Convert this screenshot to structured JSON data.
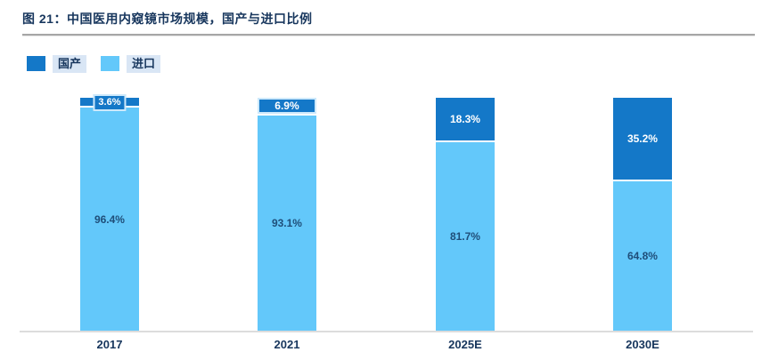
{
  "title": "图 21：中国医用内窥镜市场规模，国产与进口比例",
  "legend": {
    "domestic_label": "国产",
    "import_label": "进口"
  },
  "colors": {
    "domestic": "#1478c8",
    "import": "#63c8fa",
    "title_text": "#17365d",
    "import_label_text": "#1f4e79",
    "axis_line": "#dcdcdc",
    "divider": "#a6a6a6",
    "legend_highlight": "#d9e6f5",
    "label_box_border": "#cde9fb"
  },
  "chart_data": {
    "type": "bar",
    "subtype": "stacked-100-percent",
    "title": "图 21：中国医用内窥镜市场规模，国产与进口比例",
    "categories": [
      "2017",
      "2021",
      "2025E",
      "2030E"
    ],
    "series": [
      {
        "name": "国产",
        "values": [
          3.6,
          6.9,
          18.3,
          35.2
        ],
        "color": "#1478c8"
      },
      {
        "name": "进口",
        "values": [
          96.4,
          93.1,
          81.7,
          64.8
        ],
        "color": "#63c8fa"
      }
    ],
    "value_labels": {
      "domestic": [
        "3.6%",
        "6.9%",
        "18.3%",
        "35.2%"
      ],
      "import": [
        "96.4%",
        "93.1%",
        "81.7%",
        "64.8%"
      ]
    },
    "ylim": [
      0,
      100
    ],
    "grid": false,
    "y_axis_visible": false,
    "legend_position": "top-left"
  }
}
